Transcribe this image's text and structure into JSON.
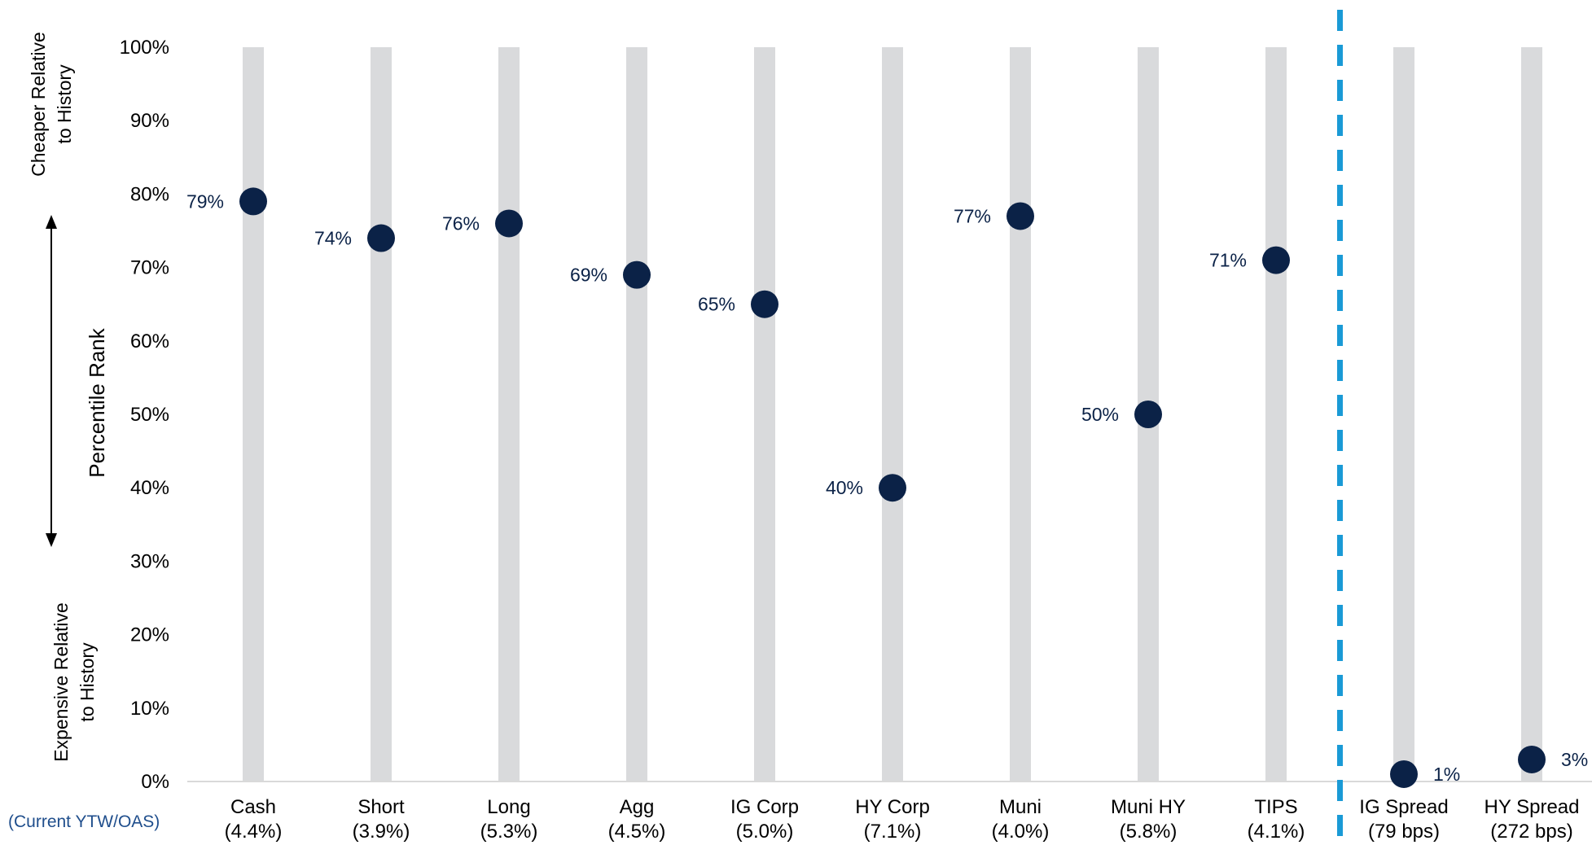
{
  "chart_data": {
    "type": "scatter",
    "ylabel": "Percentile Rank",
    "ylim": [
      0,
      100
    ],
    "yticks": [
      "0%",
      "10%",
      "20%",
      "30%",
      "40%",
      "50%",
      "60%",
      "70%",
      "80%",
      "90%",
      "100%"
    ],
    "top_annotation": [
      "Cheaper Relative",
      "to History"
    ],
    "bottom_annotation": [
      "Expensive Relative",
      "to History"
    ],
    "footnote": "(Current YTW/OAS)",
    "categories": [
      {
        "name": "Cash",
        "sub": "(4.4%)",
        "value": 79,
        "label": "79%",
        "label_side": "left"
      },
      {
        "name": "Short",
        "sub": "(3.9%)",
        "value": 74,
        "label": "74%",
        "label_side": "left"
      },
      {
        "name": "Long",
        "sub": "(5.3%)",
        "value": 76,
        "label": "76%",
        "label_side": "left"
      },
      {
        "name": "Agg",
        "sub": "(4.5%)",
        "value": 69,
        "label": "69%",
        "label_side": "left"
      },
      {
        "name": "IG Corp",
        "sub": "(5.0%)",
        "value": 65,
        "label": "65%",
        "label_side": "left"
      },
      {
        "name": "HY Corp",
        "sub": "(7.1%)",
        "value": 40,
        "label": "40%",
        "label_side": "left"
      },
      {
        "name": "Muni",
        "sub": "(4.0%)",
        "value": 77,
        "label": "77%",
        "label_side": "left"
      },
      {
        "name": "Muni HY",
        "sub": "(5.8%)",
        "value": 50,
        "label": "50%",
        "label_side": "left"
      },
      {
        "name": "TIPS",
        "sub": "(4.1%)",
        "value": 71,
        "label": "71%",
        "label_side": "left"
      },
      {
        "name": "IG Spread",
        "sub": "(79 bps)",
        "value": 1,
        "label": "1%",
        "label_side": "right"
      },
      {
        "name": "HY Spread",
        "sub": "(272 bps)",
        "value": 3,
        "label": "3%",
        "label_side": "right"
      }
    ],
    "divider_after_category": "TIPS",
    "grid": false,
    "colors": {
      "dot": "#0b2247",
      "label": "#0b2247",
      "range_bar": "#d9dadc",
      "divider": "#1a9ad6",
      "footnote": "#1f4e8c"
    }
  }
}
